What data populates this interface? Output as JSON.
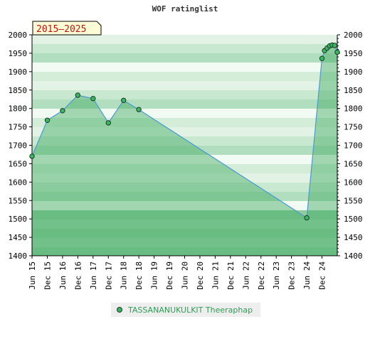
{
  "chart_data": {
    "type": "area",
    "title": "WOF ratinglist",
    "period_label": "2015–2025",
    "xlabel": "",
    "ylabel": "",
    "ylim": [
      1400,
      2000
    ],
    "yticks": [
      1400,
      1450,
      1500,
      1550,
      1600,
      1650,
      1700,
      1750,
      1800,
      1850,
      1900,
      1950,
      2000
    ],
    "xticks": [
      "Jun 15",
      "Dec 15",
      "Jun 16",
      "Dec 16",
      "Jun 17",
      "Dec 17",
      "Jun 18",
      "Dec 18",
      "Jun 19",
      "Dec 19",
      "Jun 20",
      "Dec 20",
      "Jun 21",
      "Dec 21",
      "Jun 22",
      "Dec 22",
      "Jun 23",
      "Dec 23",
      "Jun 24",
      "Dec 24"
    ],
    "grid": true,
    "legend_position": "bottom",
    "colors": {
      "line": "#4a9ad4",
      "marker": "#3bb565",
      "marker_edge": "#1b3b24",
      "legend_text": "#2e9d57"
    },
    "series": [
      {
        "name": "TASSANANUKULKIT Theeraphap",
        "points": [
          {
            "x": "2015-06",
            "y": 1670
          },
          {
            "x": "2015-12",
            "y": 1768
          },
          {
            "x": "2016-06",
            "y": 1794
          },
          {
            "x": "2016-12",
            "y": 1836
          },
          {
            "x": "2017-06",
            "y": 1827
          },
          {
            "x": "2017-12",
            "y": 1761
          },
          {
            "x": "2018-06",
            "y": 1822
          },
          {
            "x": "2018-12",
            "y": 1797
          },
          {
            "x": "2024-06",
            "y": 1503
          },
          {
            "x": "2024-12",
            "y": 1936
          },
          {
            "x": "2025-01",
            "y": 1957
          },
          {
            "x": "2025-02",
            "y": 1964
          },
          {
            "x": "2025-03",
            "y": 1970
          },
          {
            "x": "2025-04",
            "y": 1972
          },
          {
            "x": "2025-05",
            "y": 1971
          },
          {
            "x": "2025-06",
            "y": 1953
          }
        ]
      }
    ]
  }
}
